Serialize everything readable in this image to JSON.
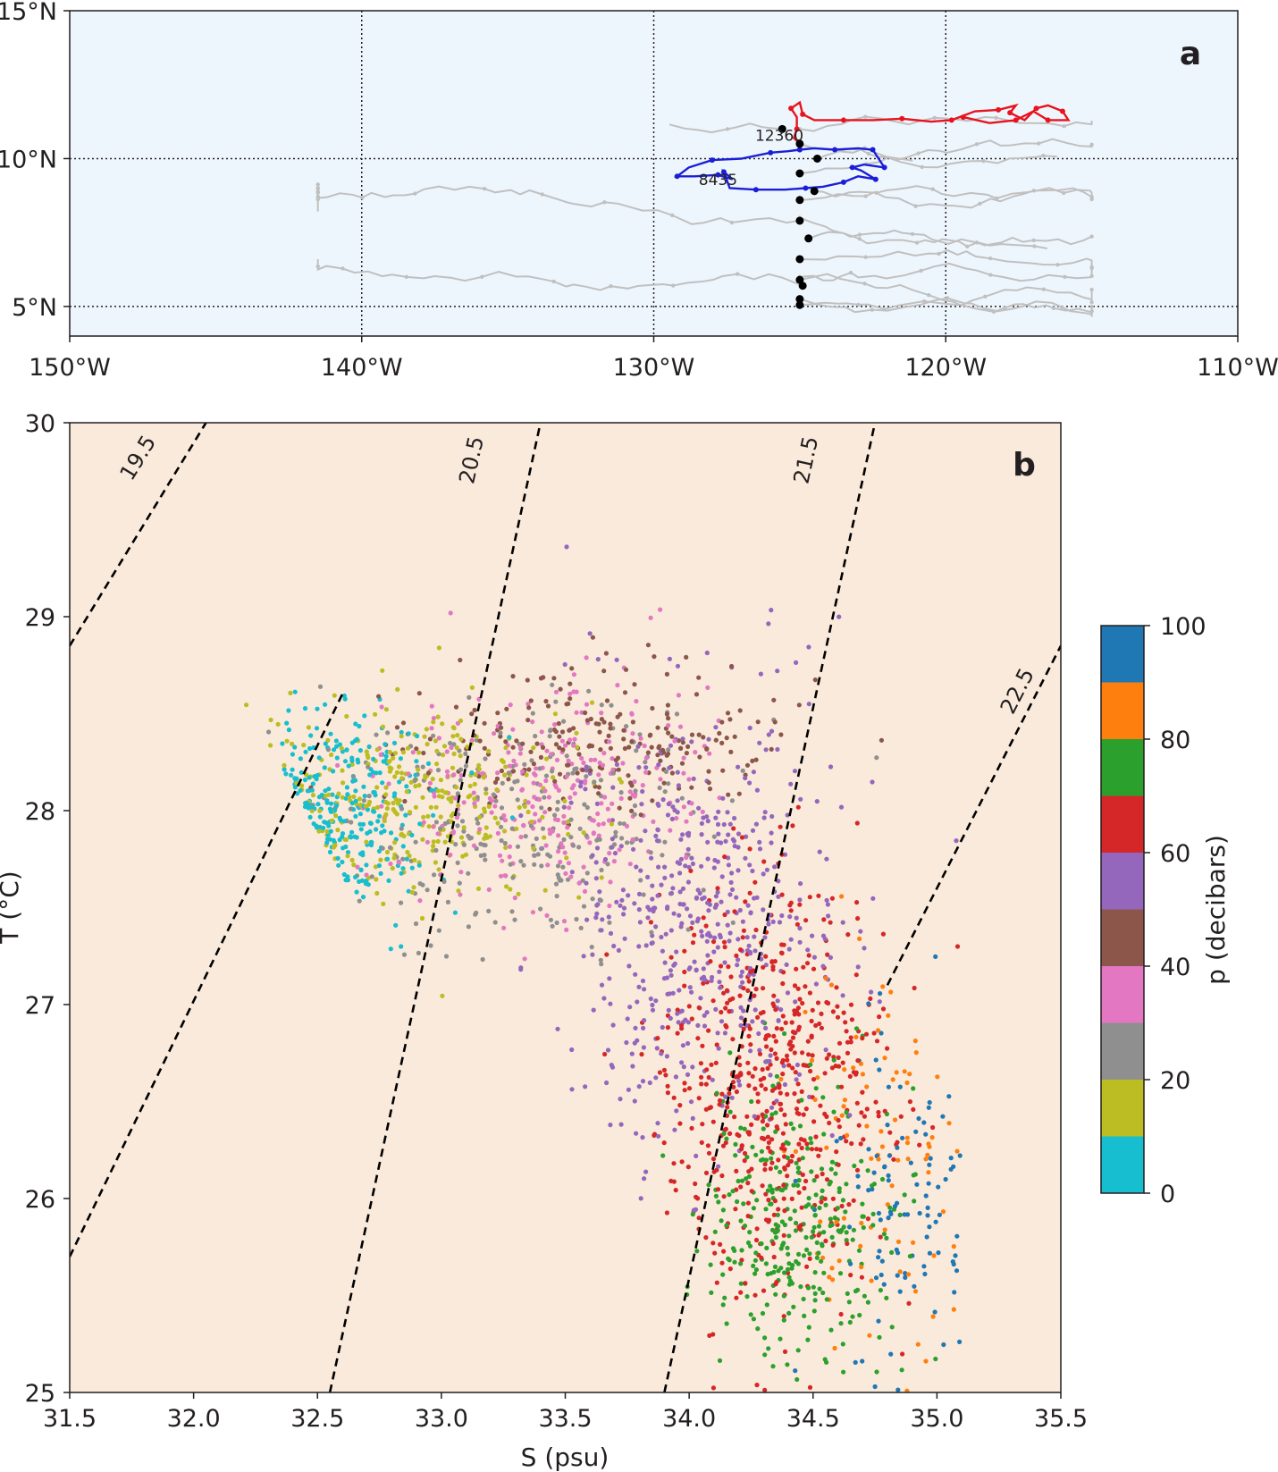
{
  "panels": {
    "a": {
      "label": "a"
    },
    "b": {
      "label": "b"
    }
  },
  "chart_data": [
    {
      "type": "map",
      "panel": "a",
      "xlim": [
        -150,
        -110
      ],
      "ylim": [
        4,
        15
      ],
      "grid": true,
      "xticks": [
        {
          "value": -150,
          "label": "150°W"
        },
        {
          "value": -140,
          "label": "140°W"
        },
        {
          "value": -130,
          "label": "130°W"
        },
        {
          "value": -120,
          "label": "120°W"
        },
        {
          "value": -110,
          "label": "110°W"
        }
      ],
      "yticks": [
        {
          "value": 5,
          "label": "5°N"
        },
        {
          "value": 10,
          "label": "10°N"
        },
        {
          "value": 15,
          "label": "15°N"
        }
      ],
      "background_color": "#eef6fd",
      "colors": {
        "background_tracks": "#c0c0c0",
        "track_12360": "#e8131f",
        "track_8435": "#1a1fd6",
        "deployments": "#000000"
      },
      "deployments": [
        {
          "lon": -125.6,
          "lat": 11.0
        },
        {
          "lon": -125.0,
          "lat": 10.5
        },
        {
          "lon": -124.4,
          "lat": 10.0
        },
        {
          "lon": -125.0,
          "lat": 9.5
        },
        {
          "lon": -124.5,
          "lat": 8.9
        },
        {
          "lon": -125.0,
          "lat": 8.6
        },
        {
          "lon": -125.0,
          "lat": 7.9
        },
        {
          "lon": -124.7,
          "lat": 7.3
        },
        {
          "lon": -125.0,
          "lat": 6.6
        },
        {
          "lon": -125.0,
          "lat": 5.9
        },
        {
          "lon": -124.9,
          "lat": 5.7
        },
        {
          "lon": -125.0,
          "lat": 5.25
        },
        {
          "lon": -125.0,
          "lat": 5.05
        }
      ],
      "highlighted_tracks": [
        {
          "name": "12360",
          "color": "#e8131f",
          "path": [
            [
              -125.0,
              10.5
            ],
            [
              -125.2,
              10.7
            ],
            [
              -125.1,
              11.0
            ],
            [
              -125.1,
              11.4
            ],
            [
              -125.3,
              11.7
            ],
            [
              -125.0,
              11.9
            ],
            [
              -124.9,
              11.5
            ],
            [
              -124.5,
              11.3
            ],
            [
              -123.5,
              11.3
            ],
            [
              -122.5,
              11.3
            ],
            [
              -121.5,
              11.35
            ],
            [
              -120.5,
              11.25
            ],
            [
              -119.8,
              11.3
            ],
            [
              -119.0,
              11.6
            ],
            [
              -118.2,
              11.65
            ],
            [
              -117.6,
              11.8
            ],
            [
              -117.8,
              11.55
            ],
            [
              -117.3,
              11.3
            ],
            [
              -116.9,
              11.7
            ],
            [
              -116.5,
              11.8
            ],
            [
              -116.0,
              11.6
            ],
            [
              -115.8,
              11.3
            ],
            [
              -116.5,
              11.3
            ],
            [
              -117.0,
              11.6
            ],
            [
              -117.6,
              11.3
            ],
            [
              -118.5,
              11.2
            ],
            [
              -119.4,
              11.4
            ]
          ],
          "labels": {
            "lon": -125.7,
            "lat": 10.6
          }
        },
        {
          "name": "8435",
          "color": "#1a1fd6",
          "path": [
            [
              -125.0,
              10.3
            ],
            [
              -125.4,
              10.25
            ],
            [
              -126.0,
              10.2
            ],
            [
              -127.0,
              10.0
            ],
            [
              -128.0,
              9.95
            ],
            [
              -128.8,
              9.7
            ],
            [
              -129.2,
              9.4
            ],
            [
              -128.6,
              9.4
            ],
            [
              -127.8,
              9.45
            ],
            [
              -127.3,
              9.3
            ],
            [
              -127.6,
              9.55
            ],
            [
              -127.4,
              9.0
            ],
            [
              -126.5,
              8.95
            ],
            [
              -125.5,
              8.95
            ],
            [
              -124.8,
              9.0
            ],
            [
              -124.2,
              9.05
            ],
            [
              -123.5,
              9.2
            ],
            [
              -123.0,
              9.4
            ],
            [
              -122.4,
              9.3
            ],
            [
              -122.9,
              9.6
            ],
            [
              -123.2,
              9.7
            ],
            [
              -122.8,
              9.8
            ],
            [
              -122.1,
              9.7
            ],
            [
              -122.3,
              10.0
            ],
            [
              -122.5,
              10.3
            ],
            [
              -123.0,
              10.35
            ],
            [
              -123.8,
              10.3
            ],
            [
              -124.5,
              10.35
            ],
            [
              -125.0,
              10.3
            ]
          ],
          "labels": {
            "lon": -127.8,
            "lat": 9.1
          }
        }
      ]
    },
    {
      "type": "scatter",
      "panel": "b",
      "xlabel": "S (psu)",
      "ylabel": "T (°C)",
      "xlim": [
        31.5,
        35.5
      ],
      "ylim": [
        25,
        30
      ],
      "xticks": [
        "31.5",
        "32.0",
        "32.5",
        "33.0",
        "33.5",
        "34.0",
        "34.5",
        "35.0",
        "35.5"
      ],
      "yticks": [
        "25",
        "26",
        "27",
        "28",
        "29",
        "30"
      ],
      "background_color": "#f9eadb",
      "density_contours": [
        {
          "label": "19.5",
          "points": [
            [
              31.5,
              28.85
            ],
            [
              32.05,
              30.0
            ]
          ],
          "label_at": [
            31.8,
            29.8
          ]
        },
        {
          "label": "19.5",
          "points": [
            [
              31.5,
              25.7
            ],
            [
              32.6,
              28.6
            ]
          ],
          "hidden_label": true
        },
        {
          "label": "20.5",
          "points": [
            [
              32.55,
              25.0
            ],
            [
              33.4,
              30.0
            ]
          ],
          "label_at": [
            33.15,
            29.8
          ]
        },
        {
          "label": "21.5",
          "points": [
            [
              33.9,
              25.0
            ],
            [
              34.75,
              30.0
            ]
          ],
          "label_at": [
            34.5,
            29.8
          ]
        },
        {
          "label": "22.5",
          "points": [
            [
              34.8,
              27.1
            ],
            [
              35.5,
              28.85
            ]
          ],
          "label_at": [
            35.35,
            28.6
          ]
        }
      ],
      "colorbar": {
        "label": "p (decibars)",
        "range": [
          0,
          100
        ],
        "ticks": [
          "0",
          "20",
          "40",
          "60",
          "80",
          "100"
        ],
        "bins": [
          {
            "from": 0,
            "to": 10,
            "color": "#17becf"
          },
          {
            "from": 10,
            "to": 20,
            "color": "#bcbd22"
          },
          {
            "from": 20,
            "to": 30,
            "color": "#8f8f8f"
          },
          {
            "from": 30,
            "to": 40,
            "color": "#e377c2"
          },
          {
            "from": 40,
            "to": 50,
            "color": "#8c564b"
          },
          {
            "from": 50,
            "to": 60,
            "color": "#9467bd"
          },
          {
            "from": 60,
            "to": 70,
            "color": "#d62728"
          },
          {
            "from": 70,
            "to": 80,
            "color": "#2ca02c"
          },
          {
            "from": 80,
            "to": 90,
            "color": "#ff7f0e"
          },
          {
            "from": 90,
            "to": 100,
            "color": "#1f77b4"
          }
        ]
      },
      "point_clusters": [
        {
          "pressure": 5,
          "s": 32.55,
          "t": 28.05,
          "s_spread": 0.45,
          "t_spread": 0.45,
          "n": 260
        },
        {
          "pressure": 15,
          "s": 32.9,
          "t": 28.05,
          "s_spread": 0.7,
          "t_spread": 0.5,
          "n": 300
        },
        {
          "pressure": 25,
          "s": 33.35,
          "t": 27.9,
          "s_spread": 0.8,
          "t_spread": 0.6,
          "n": 280
        },
        {
          "pressure": 35,
          "s": 33.45,
          "t": 28.1,
          "s_spread": 0.65,
          "t_spread": 0.55,
          "n": 280
        },
        {
          "pressure": 45,
          "s": 33.6,
          "t": 28.35,
          "s_spread": 0.75,
          "t_spread": 0.4,
          "n": 220
        },
        {
          "pressure": 55,
          "s": 34.05,
          "t": 27.4,
          "s_spread": 0.55,
          "t_spread": 1.1,
          "n": 520
        },
        {
          "pressure": 65,
          "s": 34.35,
          "t": 26.6,
          "s_spread": 0.45,
          "t_spread": 1.1,
          "n": 560
        },
        {
          "pressure": 75,
          "s": 34.45,
          "t": 25.9,
          "s_spread": 0.4,
          "t_spread": 0.7,
          "n": 320
        },
        {
          "pressure": 85,
          "s": 34.75,
          "t": 26.2,
          "s_spread": 0.35,
          "t_spread": 0.9,
          "n": 90
        },
        {
          "pressure": 95,
          "s": 34.85,
          "t": 26.0,
          "s_spread": 0.35,
          "t_spread": 0.9,
          "n": 100
        }
      ]
    }
  ]
}
